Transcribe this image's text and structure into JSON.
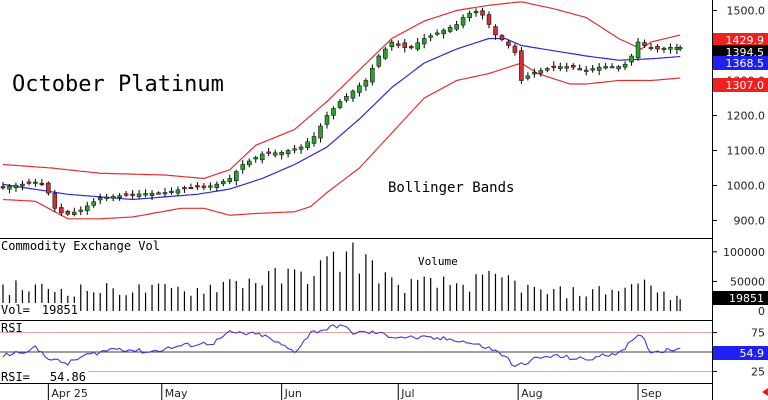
{
  "chart_data": {
    "type": "candlestick",
    "title": "October Platinum",
    "annotation": "Bollinger Bands",
    "price": {
      "ylim": [
        850,
        1530
      ],
      "yticks": [
        "900.0",
        "1000.0",
        "1100.0",
        "1200.0",
        "1300.0",
        "1400.0",
        "1500.0"
      ],
      "ytick_values": [
        900,
        1000,
        1100,
        1200,
        1300,
        1400,
        1500
      ],
      "anchors": {
        "close": [
          [
            0,
            995
          ],
          [
            10,
            1010
          ],
          [
            13,
            1000
          ],
          [
            16,
            935
          ],
          [
            19,
            915
          ],
          [
            24,
            930
          ],
          [
            30,
            965
          ],
          [
            40,
            975
          ],
          [
            50,
            980
          ],
          [
            58,
            995
          ],
          [
            65,
            1000
          ],
          [
            70,
            1020
          ],
          [
            74,
            1060
          ],
          [
            80,
            1090
          ],
          [
            86,
            1095
          ],
          [
            92,
            1110
          ],
          [
            96,
            1140
          ],
          [
            100,
            1200
          ],
          [
            104,
            1240
          ],
          [
            108,
            1270
          ],
          [
            112,
            1300
          ],
          [
            116,
            1370
          ],
          [
            120,
            1410
          ],
          [
            125,
            1390
          ],
          [
            130,
            1420
          ],
          [
            135,
            1440
          ],
          [
            140,
            1460
          ],
          [
            143,
            1490
          ],
          [
            147,
            1500
          ],
          [
            150,
            1460
          ],
          [
            152,
            1430
          ],
          [
            155,
            1410
          ],
          [
            158,
            1380
          ],
          [
            160,
            1300
          ],
          [
            163,
            1320
          ],
          [
            170,
            1340
          ],
          [
            175,
            1340
          ],
          [
            180,
            1330
          ],
          [
            185,
            1340
          ],
          [
            190,
            1340
          ],
          [
            193,
            1350
          ],
          [
            196,
            1410
          ],
          [
            198,
            1400
          ],
          [
            202,
            1390
          ],
          [
            206,
            1395
          ],
          [
            209,
            1394.5
          ]
        ],
        "middle": [
          [
            0,
            1003
          ],
          [
            20,
            975
          ],
          [
            40,
            960
          ],
          [
            60,
            975
          ],
          [
            70,
            990
          ],
          [
            80,
            1020
          ],
          [
            90,
            1060
          ],
          [
            100,
            1110
          ],
          [
            110,
            1190
          ],
          [
            120,
            1280
          ],
          [
            130,
            1350
          ],
          [
            140,
            1390
          ],
          [
            150,
            1420
          ],
          [
            155,
            1420
          ],
          [
            160,
            1400
          ],
          [
            170,
            1385
          ],
          [
            180,
            1370
          ],
          [
            190,
            1358
          ],
          [
            200,
            1362
          ],
          [
            209,
            1368.5
          ]
        ],
        "upper": [
          [
            0,
            1060
          ],
          [
            15,
            1050
          ],
          [
            30,
            1035
          ],
          [
            50,
            1030
          ],
          [
            62,
            1020
          ],
          [
            70,
            1045
          ],
          [
            78,
            1115
          ],
          [
            90,
            1160
          ],
          [
            100,
            1240
          ],
          [
            110,
            1330
          ],
          [
            120,
            1420
          ],
          [
            130,
            1470
          ],
          [
            140,
            1500
          ],
          [
            150,
            1515
          ],
          [
            160,
            1525
          ],
          [
            170,
            1505
          ],
          [
            180,
            1480
          ],
          [
            190,
            1420
          ],
          [
            197,
            1390
          ],
          [
            200,
            1410
          ],
          [
            209,
            1429.9
          ]
        ],
        "lower": [
          [
            0,
            960
          ],
          [
            10,
            955
          ],
          [
            20,
            905
          ],
          [
            30,
            905
          ],
          [
            40,
            910
          ],
          [
            55,
            935
          ],
          [
            62,
            935
          ],
          [
            70,
            915
          ],
          [
            78,
            920
          ],
          [
            90,
            925
          ],
          [
            95,
            940
          ],
          [
            100,
            980
          ],
          [
            110,
            1050
          ],
          [
            120,
            1150
          ],
          [
            130,
            1250
          ],
          [
            140,
            1300
          ],
          [
            150,
            1320
          ],
          [
            160,
            1350
          ],
          [
            165,
            1320
          ],
          [
            175,
            1290
          ],
          [
            180,
            1290
          ],
          [
            190,
            1300
          ],
          [
            200,
            1300
          ],
          [
            209,
            1307
          ]
        ]
      },
      "labels": {
        "upper": "1429.9",
        "last": "1394.5",
        "middle": "1368.5",
        "lower": "1307.0"
      }
    },
    "volume": {
      "label": "Commodity Exchange Vol",
      "series_label": "Volume",
      "readout_label": "Vol=",
      "readout_value": "19851",
      "ylim": [
        0,
        120000
      ],
      "yticks": [
        "50000",
        "100000"
      ],
      "ytick_values": [
        50000,
        100000
      ],
      "zero_label": "0",
      "last": "19851",
      "anchors": [
        [
          0,
          45000
        ],
        [
          20,
          40000
        ],
        [
          40,
          40000
        ],
        [
          60,
          40000
        ],
        [
          70,
          55000
        ],
        [
          80,
          60000
        ],
        [
          90,
          65000
        ],
        [
          100,
          85000
        ],
        [
          107,
          110000
        ],
        [
          115,
          80000
        ],
        [
          120,
          50000
        ],
        [
          140,
          50000
        ],
        [
          155,
          60000
        ],
        [
          165,
          35000
        ],
        [
          180,
          35000
        ],
        [
          195,
          45000
        ],
        [
          196,
          72000
        ],
        [
          200,
          40000
        ],
        [
          209,
          19851
        ]
      ]
    },
    "rsi": {
      "label": "RSI",
      "readout_label": "RSI=",
      "readout_value": "54.86",
      "ylim": [
        10,
        90
      ],
      "yticks": [
        "25",
        "50",
        "75"
      ],
      "ytick_values": [
        25,
        50,
        75
      ],
      "last": "54.9",
      "anchors": [
        [
          0,
          45
        ],
        [
          10,
          55
        ],
        [
          15,
          40
        ],
        [
          20,
          35
        ],
        [
          25,
          45
        ],
        [
          35,
          55
        ],
        [
          45,
          50
        ],
        [
          55,
          58
        ],
        [
          65,
          62
        ],
        [
          70,
          75
        ],
        [
          80,
          72
        ],
        [
          90,
          50
        ],
        [
          95,
          75
        ],
        [
          100,
          80
        ],
        [
          104,
          85
        ],
        [
          108,
          75
        ],
        [
          115,
          75
        ],
        [
          120,
          70
        ],
        [
          130,
          68
        ],
        [
          140,
          66
        ],
        [
          150,
          55
        ],
        [
          155,
          45
        ],
        [
          158,
          30
        ],
        [
          163,
          40
        ],
        [
          170,
          45
        ],
        [
          180,
          40
        ],
        [
          190,
          50
        ],
        [
          197,
          72
        ],
        [
          200,
          50
        ],
        [
          209,
          54.9
        ]
      ]
    },
    "x_labels": [
      {
        "label": "Apr 25",
        "index": 14
      },
      {
        "label": "May",
        "index": 49
      },
      {
        "label": "Jun",
        "index": 86
      },
      {
        "label": "Jul",
        "index": 122
      },
      {
        "label": "Aug",
        "index": 159
      },
      {
        "label": "Sep",
        "index": 196
      }
    ],
    "n_bars": 210,
    "colors": {
      "up": "#2aa02a",
      "down": "#c83232",
      "middle_band": "#2a2ad8",
      "outer_band": "#e03030",
      "rsi": "#3c3cd8",
      "badge_red": "#ee2020",
      "badge_blue": "#2020ee",
      "badge_black": "#000000",
      "arrow": "#e02020"
    },
    "grid": false
  }
}
